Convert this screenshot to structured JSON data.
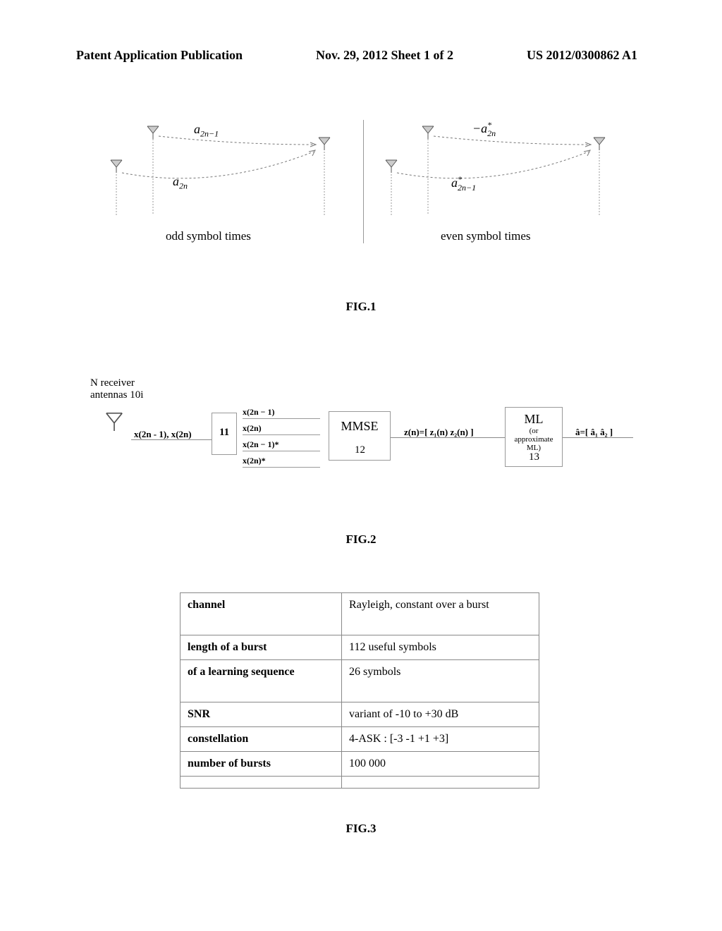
{
  "header": {
    "left": "Patent Application Publication",
    "center": "Nov. 29, 2012  Sheet 1 of 2",
    "right": "US 2012/0300862 A1"
  },
  "fig1": {
    "label": "FIG.1",
    "left_panel": {
      "top_symbol": "a",
      "top_sub": "2n−1",
      "bottom_symbol": "a",
      "bottom_sub": "2n",
      "time_label": "odd symbol times"
    },
    "right_panel": {
      "top_symbol": "−a",
      "top_sub": "2n",
      "top_sup": "*",
      "bottom_symbol": "a",
      "bottom_sub": "2n−1",
      "bottom_sup": "*",
      "time_label": "even symbol times"
    }
  },
  "fig2": {
    "label": "FIG.2",
    "antenna_label_1": "N receiver",
    "antenna_label_2": "antennas 10i",
    "input_signal": "x(2n - 1), x(2n)",
    "box11_num": "11",
    "sig1": "x(2n − 1)",
    "sig2": "x(2n)",
    "sig3": "x(2n − 1)*",
    "sig4": "x(2n)*",
    "box12_label": "MMSE",
    "box12_num": "12",
    "mid_signal": "z(n)=[ z₁(n) z₂(n) ]",
    "box13_label": "ML",
    "box13_sub1": "(or",
    "box13_sub2": "approximate",
    "box13_sub3": "ML)",
    "box13_num": "13",
    "output_signal": "â=[ â₁  â₂ ]"
  },
  "table": {
    "rows": [
      {
        "param": "channel",
        "value": "Rayleigh, constant over a burst",
        "tall": true
      },
      {
        "param": "length of a burst",
        "value": "112 useful symbols",
        "tall": false
      },
      {
        "param": "of a learning sequence",
        "value": "26 symbols",
        "tall": true
      },
      {
        "param": "SNR",
        "value": "variant of -10 to +30 dB",
        "tall": false
      },
      {
        "param": "constellation",
        "value": "4-ASK : [-3 -1 +1 +3]",
        "tall": false
      },
      {
        "param": "number of bursts",
        "value": "100 000",
        "tall": false
      },
      {
        "param": "",
        "value": "",
        "tall": false
      }
    ]
  },
  "fig3": {
    "label": "FIG.3"
  },
  "colors": {
    "text": "#000000",
    "border": "#888888",
    "dash": "#777777",
    "bg": "#ffffff"
  }
}
